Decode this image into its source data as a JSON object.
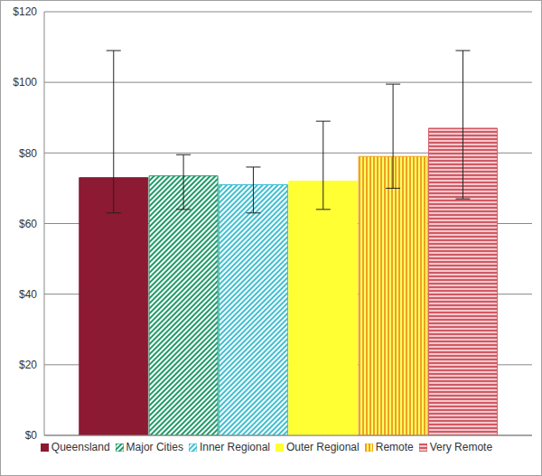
{
  "chart_data": {
    "type": "bar",
    "categories": [
      "Queensland",
      "Major Cities",
      "Inner Regional",
      "Outer Regional",
      "Remote",
      "Very Remote"
    ],
    "values": [
      73,
      73.5,
      71,
      72,
      79,
      87
    ],
    "error_low": [
      63,
      64,
      63,
      64,
      70,
      67
    ],
    "error_high": [
      109,
      79.5,
      76,
      89,
      99.5,
      109
    ],
    "colors": [
      "#8b1a32",
      "#1f9a68",
      "#3fbfd0",
      "#ffff33",
      "#f0a020",
      "#d05a64"
    ],
    "ylim": [
      0,
      120
    ],
    "yticks": [
      {
        "value": 0,
        "label": "$0"
      },
      {
        "value": 20,
        "label": "$20"
      },
      {
        "value": 40,
        "label": "$40"
      },
      {
        "value": 60,
        "label": "$60"
      },
      {
        "value": 80,
        "label": "$80"
      },
      {
        "value": 100,
        "label": "$100"
      },
      {
        "value": 120,
        "label": "$120"
      }
    ],
    "grid": true,
    "legend": "bottom",
    "tick_labels": "y"
  }
}
